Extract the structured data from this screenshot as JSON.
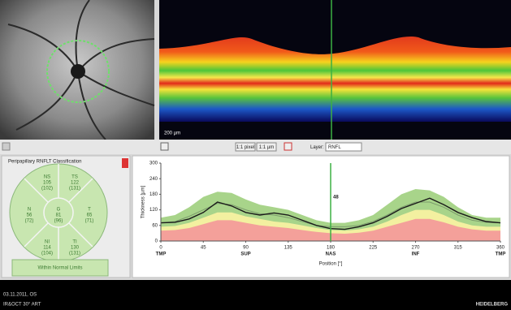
{
  "toolbar": {
    "pixel_button": "1:1 pixel",
    "micron_button": "1:1 µm",
    "layer_label": "Layer:",
    "layer_value": "RNFL"
  },
  "oct_scale": "200 µm",
  "classification": {
    "title": "Peripapillary RNFLT Classification",
    "sectors": [
      {
        "name": "NS",
        "value": 105,
        "normal": "(102)"
      },
      {
        "name": "TS",
        "value": 122,
        "normal": "(131)"
      },
      {
        "name": "N",
        "value": 56,
        "normal": "(72)"
      },
      {
        "name": "G",
        "value": 81,
        "normal": "(96)"
      },
      {
        "name": "T",
        "value": 65,
        "normal": "(71)"
      },
      {
        "name": "NI",
        "value": 114,
        "normal": "(104)"
      },
      {
        "name": "TI",
        "value": 130,
        "normal": "(131)"
      }
    ],
    "result": "Within Normal Limits"
  },
  "footer": {
    "date": "03.11.2011, OS",
    "mode": "IR&OCT 30° ART",
    "brand": "HEIDELBERG"
  },
  "chart_data": {
    "type": "area-line",
    "ylabel": "Thickness [µm]",
    "xlabel": "Position [°]",
    "x": [
      0,
      15,
      30,
      45,
      60,
      75,
      90,
      105,
      120,
      135,
      150,
      165,
      180,
      195,
      210,
      225,
      240,
      255,
      270,
      285,
      300,
      315,
      330,
      345,
      360
    ],
    "series": [
      {
        "color": "#a8d48a",
        "values": [
          90,
          100,
          130,
          170,
          190,
          185,
          160,
          140,
          130,
          120,
          100,
          80,
          70,
          70,
          80,
          100,
          140,
          180,
          200,
          195,
          170,
          130,
          100,
          90,
          90
        ]
      },
      {
        "color": "#f3f0a0",
        "values": [
          55,
          58,
          70,
          90,
          110,
          110,
          95,
          85,
          75,
          70,
          60,
          50,
          42,
          40,
          45,
          55,
          75,
          100,
          120,
          120,
          100,
          75,
          60,
          55,
          55
        ]
      },
      {
        "color": "#f4a09a",
        "values": [
          40,
          42,
          50,
          65,
          80,
          80,
          70,
          60,
          55,
          50,
          42,
          35,
          30,
          28,
          32,
          40,
          55,
          70,
          85,
          85,
          72,
          55,
          45,
          40,
          40
        ]
      },
      {
        "color": "#7c9c6c",
        "values": [
          70,
          75,
          95,
          120,
          145,
          140,
          120,
          105,
          100,
          90,
          75,
          60,
          55,
          55,
          60,
          75,
          100,
          130,
          150,
          150,
          130,
          100,
          80,
          72,
          70
        ]
      },
      {
        "color": "#1a1a1a",
        "values": [
          70,
          72,
          85,
          110,
          150,
          135,
          110,
          100,
          108,
          100,
          80,
          60,
          48,
          45,
          55,
          70,
          95,
          125,
          145,
          165,
          140,
          110,
          90,
          75,
          70
        ]
      }
    ],
    "marker_x": 180,
    "marker_value": 48,
    "marker_color": "#3cb043",
    "xlim": [
      0,
      360
    ],
    "ylim": [
      0,
      300
    ],
    "xticks": [
      0,
      45,
      90,
      135,
      180,
      225,
      270,
      315,
      360
    ],
    "yticks": [
      0,
      60,
      120,
      180,
      240,
      300
    ],
    "xregions": [
      {
        "value": 0,
        "label": "TMP"
      },
      {
        "value": 90,
        "label": "SUP"
      },
      {
        "value": 180,
        "label": "NAS"
      },
      {
        "value": 270,
        "label": "INF"
      },
      {
        "value": 360,
        "label": "TMP"
      }
    ],
    "grid": false
  }
}
